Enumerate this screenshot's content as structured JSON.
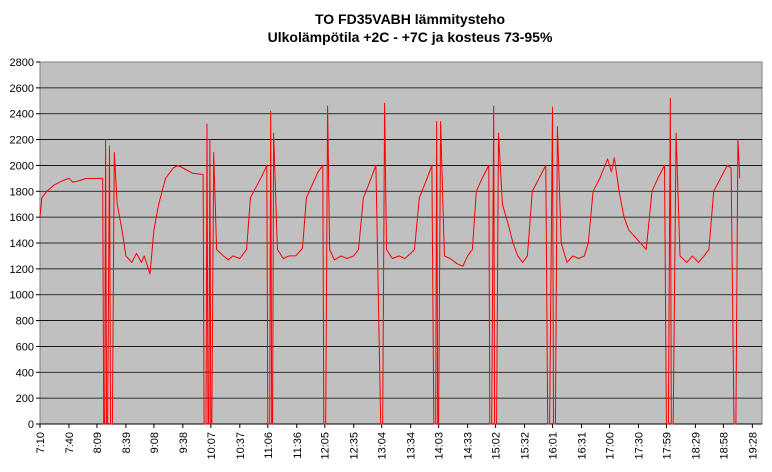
{
  "chart_data": {
    "type": "line",
    "title": "TO FD35VABH lämmitysteho",
    "subtitle": "Ulkolämpötila  +2C - +7C ja kosteus 73-95%",
    "xlabel": "",
    "ylabel": "",
    "ylim": [
      0,
      2800
    ],
    "y_ticks": [
      0,
      200,
      400,
      600,
      800,
      1000,
      1200,
      1400,
      1600,
      1800,
      2000,
      2200,
      2400,
      2600,
      2800
    ],
    "x_ticks": [
      "7:10",
      "7:40",
      "8:09",
      "8:39",
      "9:08",
      "9:38",
      "10:07",
      "10:37",
      "11:06",
      "11:36",
      "12:05",
      "12:35",
      "13:04",
      "13:34",
      "14:03",
      "14:33",
      "15:02",
      "15:32",
      "16:01",
      "16:31",
      "17:00",
      "17:30",
      "17:59",
      "18:29",
      "18:58",
      "19:28"
    ],
    "x_range": [
      "7:10",
      "19:38"
    ],
    "grid": "horizontal",
    "plot_background": "#c0c0c0",
    "colors": {
      "series": "#ff0000"
    },
    "series": [
      {
        "points": [
          [
            "7:10",
            1600
          ],
          [
            "7:12",
            1750
          ],
          [
            "7:17",
            1800
          ],
          [
            "7:25",
            1850
          ],
          [
            "7:33",
            1880
          ],
          [
            "7:40",
            1900
          ],
          [
            "7:44",
            1870
          ],
          [
            "7:50",
            1880
          ],
          [
            "7:58",
            1900
          ],
          [
            "8:05",
            1900
          ],
          [
            "8:15",
            1900
          ],
          [
            "8:16",
            0
          ],
          [
            "8:17",
            0
          ],
          [
            "8:18",
            2200
          ],
          [
            "8:19",
            0
          ],
          [
            "8:20",
            0
          ],
          [
            "8:22",
            2150
          ],
          [
            "8:23",
            0
          ],
          [
            "8:25",
            0
          ],
          [
            "8:27",
            2100
          ],
          [
            "8:30",
            1700
          ],
          [
            "8:35",
            1500
          ],
          [
            "8:39",
            1300
          ],
          [
            "8:45",
            1250
          ],
          [
            "8:50",
            1320
          ],
          [
            "8:55",
            1250
          ],
          [
            "8:58",
            1300
          ],
          [
            "9:04",
            1160
          ],
          [
            "9:08",
            1500
          ],
          [
            "9:13",
            1700
          ],
          [
            "9:20",
            1900
          ],
          [
            "9:28",
            1980
          ],
          [
            "9:33",
            2000
          ],
          [
            "9:38",
            1980
          ],
          [
            "9:48",
            1940
          ],
          [
            "9:59",
            1930
          ],
          [
            "10:00",
            0
          ],
          [
            "10:01",
            0
          ],
          [
            "10:02",
            0
          ],
          [
            "10:03",
            2320
          ],
          [
            "10:04",
            0
          ],
          [
            "10:05",
            0
          ],
          [
            "10:06",
            2200
          ],
          [
            "10:07",
            0
          ],
          [
            "10:08",
            0
          ],
          [
            "10:10",
            2100
          ],
          [
            "10:13",
            1350
          ],
          [
            "10:20",
            1300
          ],
          [
            "10:25",
            1270
          ],
          [
            "10:30",
            1300
          ],
          [
            "10:37",
            1280
          ],
          [
            "10:44",
            1350
          ],
          [
            "10:48",
            1750
          ],
          [
            "10:55",
            1850
          ],
          [
            "11:00",
            1920
          ],
          [
            "11:05",
            2000
          ],
          [
            "11:06",
            0
          ],
          [
            "11:08",
            0
          ],
          [
            "11:09",
            2420
          ],
          [
            "11:10",
            0
          ],
          [
            "11:11",
            0
          ],
          [
            "11:12",
            2250
          ],
          [
            "11:16",
            1350
          ],
          [
            "11:22",
            1280
          ],
          [
            "11:28",
            1300
          ],
          [
            "11:35",
            1300
          ],
          [
            "11:42",
            1360
          ],
          [
            "11:46",
            1750
          ],
          [
            "11:52",
            1850
          ],
          [
            "11:58",
            1950
          ],
          [
            "12:03",
            2000
          ],
          [
            "12:04",
            0
          ],
          [
            "12:06",
            0
          ],
          [
            "12:08",
            2460
          ],
          [
            "12:10",
            1350
          ],
          [
            "12:15",
            1270
          ],
          [
            "12:22",
            1300
          ],
          [
            "12:28",
            1280
          ],
          [
            "12:35",
            1300
          ],
          [
            "12:40",
            1350
          ],
          [
            "12:45",
            1750
          ],
          [
            "12:52",
            1880
          ],
          [
            "12:58",
            2000
          ],
          [
            "13:03",
            0
          ],
          [
            "13:05",
            0
          ],
          [
            "13:07",
            2480
          ],
          [
            "13:09",
            1350
          ],
          [
            "13:15",
            1280
          ],
          [
            "13:22",
            1300
          ],
          [
            "13:28",
            1280
          ],
          [
            "13:34",
            1320
          ],
          [
            "13:38",
            1350
          ],
          [
            "13:43",
            1750
          ],
          [
            "13:50",
            1880
          ],
          [
            "13:56",
            2000
          ],
          [
            "13:58",
            0
          ],
          [
            "14:00",
            0
          ],
          [
            "14:01",
            2340
          ],
          [
            "14:02",
            0
          ],
          [
            "14:03",
            0
          ],
          [
            "14:05",
            2340
          ],
          [
            "14:09",
            1300
          ],
          [
            "14:15",
            1280
          ],
          [
            "14:22",
            1240
          ],
          [
            "14:28",
            1220
          ],
          [
            "14:33",
            1300
          ],
          [
            "14:38",
            1350
          ],
          [
            "14:42",
            1800
          ],
          [
            "14:48",
            1900
          ],
          [
            "14:55",
            2000
          ],
          [
            "14:56",
            0
          ],
          [
            "14:58",
            0
          ],
          [
            "15:00",
            2460
          ],
          [
            "15:01",
            0
          ],
          [
            "15:03",
            0
          ],
          [
            "15:05",
            2250
          ],
          [
            "15:09",
            1700
          ],
          [
            "15:15",
            1550
          ],
          [
            "15:20",
            1400
          ],
          [
            "15:25",
            1300
          ],
          [
            "15:30",
            1250
          ],
          [
            "15:35",
            1300
          ],
          [
            "15:40",
            1800
          ],
          [
            "15:47",
            1900
          ],
          [
            "15:54",
            2000
          ],
          [
            "15:56",
            0
          ],
          [
            "15:58",
            0
          ],
          [
            "16:01",
            2450
          ],
          [
            "16:02",
            0
          ],
          [
            "16:04",
            0
          ],
          [
            "16:06",
            2300
          ],
          [
            "16:10",
            1400
          ],
          [
            "16:16",
            1250
          ],
          [
            "16:22",
            1300
          ],
          [
            "16:28",
            1280
          ],
          [
            "16:34",
            1300
          ],
          [
            "16:38",
            1400
          ],
          [
            "16:43",
            1800
          ],
          [
            "16:50",
            1900
          ],
          [
            "16:58",
            2050
          ],
          [
            "17:02",
            1950
          ],
          [
            "17:05",
            2060
          ],
          [
            "17:10",
            1800
          ],
          [
            "17:15",
            1600
          ],
          [
            "17:20",
            1500
          ],
          [
            "17:26",
            1450
          ],
          [
            "17:32",
            1400
          ],
          [
            "17:38",
            1350
          ],
          [
            "17:44",
            1800
          ],
          [
            "17:50",
            1900
          ],
          [
            "17:57",
            2000
          ],
          [
            "17:59",
            0
          ],
          [
            "18:01",
            0
          ],
          [
            "18:03",
            2520
          ],
          [
            "18:04",
            0
          ],
          [
            "18:06",
            0
          ],
          [
            "18:09",
            2250
          ],
          [
            "18:13",
            1300
          ],
          [
            "18:20",
            1250
          ],
          [
            "18:26",
            1300
          ],
          [
            "18:32",
            1250
          ],
          [
            "18:38",
            1300
          ],
          [
            "18:43",
            1350
          ],
          [
            "18:48",
            1800
          ],
          [
            "18:55",
            1900
          ],
          [
            "19:02",
            2000
          ],
          [
            "19:06",
            1980
          ],
          [
            "19:09",
            0
          ],
          [
            "19:11",
            0
          ],
          [
            "19:13",
            2200
          ],
          [
            "19:15",
            1900
          ]
        ]
      }
    ]
  }
}
